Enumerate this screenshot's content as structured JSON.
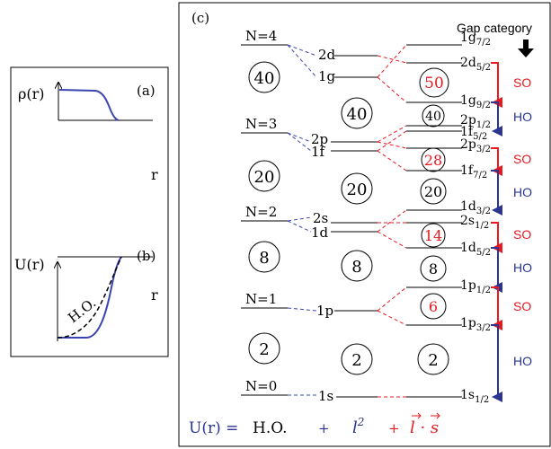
{
  "panel_a": {
    "label": "(a)",
    "ylabel": "ρ(r)",
    "xlabel": "r"
  },
  "panel_b": {
    "label": "(b)",
    "ylabel": "U(r)",
    "xlabel": "r",
    "curve_label": "H.O."
  },
  "panel_c": {
    "label": "(c)",
    "gap_category_title": "Gap category",
    "ho_shells": [
      {
        "label": "N=4"
      },
      {
        "label": "N=3"
      },
      {
        "label": "N=2"
      },
      {
        "label": "N=1"
      },
      {
        "label": "N=0"
      }
    ],
    "l2_levels": [
      {
        "label": "2d"
      },
      {
        "label": "1g"
      },
      {
        "label": "2p"
      },
      {
        "label": "1f"
      },
      {
        "label": "2s"
      },
      {
        "label": "1d"
      },
      {
        "label": "1p"
      },
      {
        "label": "1s"
      }
    ],
    "ls_levels": [
      {
        "name": "1g",
        "sub": "7/2"
      },
      {
        "name": "2d",
        "sub": "5/2"
      },
      {
        "name": "1g",
        "sub": "9/2"
      },
      {
        "name": "2p",
        "sub": "1/2"
      },
      {
        "name": "1f",
        "sub": "5/2"
      },
      {
        "name": "2p",
        "sub": "3/2"
      },
      {
        "name": "1f",
        "sub": "7/2"
      },
      {
        "name": "1d",
        "sub": "3/2"
      },
      {
        "name": "2s",
        "sub": "1/2"
      },
      {
        "name": "1d",
        "sub": "5/2"
      },
      {
        "name": "1p",
        "sub": "1/2"
      },
      {
        "name": "1p",
        "sub": "3/2"
      },
      {
        "name": "1s",
        "sub": "1/2"
      }
    ],
    "magic_numbers_ho": [
      "40",
      "20",
      "8",
      "2"
    ],
    "magic_numbers_l2": [
      "40",
      "20",
      "8",
      "2"
    ],
    "magic_numbers_ls": [
      "50",
      "40",
      "28",
      "20",
      "14",
      "8",
      "6",
      "2"
    ],
    "gap_labels": [
      "SO",
      "HO",
      "SO",
      "HO",
      "SO",
      "HO",
      "SO",
      "HO"
    ],
    "colors": {
      "so": "#e8191f",
      "ho": "#2a3591",
      "blue_line": "#3a45b0",
      "red_line": "#e8191f"
    },
    "equation": {
      "lhs": "U(r) =",
      "ho": "H.O.",
      "plus1": "+",
      "l_symbol": "l",
      "l_exp": "2",
      "plus2": "+",
      "ls_symbol": "l · s"
    }
  }
}
